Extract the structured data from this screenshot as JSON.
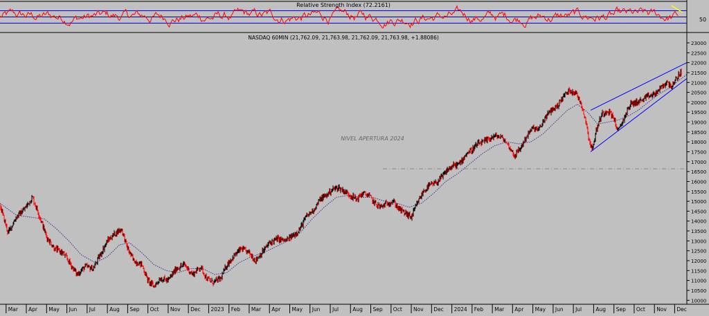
{
  "rsi_panel": {
    "title": "Relative Strength Index (72.2161)",
    "level_label": "50",
    "colors": {
      "line": "#ff0000",
      "bands": "#0000ff",
      "highlight": "#ffff00"
    }
  },
  "price_panel": {
    "title": "NASDAQ 60MIN  (21,762.09, 21,763.98, 21,762.09, 21,763.98, +1.88086)",
    "reference_label": "NIVEL APERTURA 2024",
    "colors": {
      "candles_up": "#000000",
      "candles_down": "#ff0000",
      "moving_average": "#4b2a8c",
      "trendlines": "#0000ff",
      "reference": "#888888"
    }
  },
  "chart_data": [
    {
      "type": "line",
      "title": "Relative Strength Index (72.2161)",
      "ylim": [
        0,
        100
      ],
      "levels": [
        30,
        50,
        70
      ],
      "y_ticks": [
        50
      ],
      "x_range": [
        "2022-03",
        "2024-12"
      ],
      "last_value": 72.2161
    },
    {
      "type": "line",
      "title": "NASDAQ 60MIN  (21,762.09, 21,763.98, 21,762.09, 21,763.98, +1.88086)",
      "ylim": [
        9800,
        23000
      ],
      "y_ticks": [
        10000,
        10500,
        11000,
        11500,
        12000,
        12500,
        13000,
        13500,
        14000,
        14500,
        15000,
        15500,
        16000,
        16500,
        17000,
        17500,
        18000,
        18500,
        19000,
        19500,
        20000,
        20500,
        21000,
        21500,
        22000,
        22500,
        23000
      ],
      "x_ticks": [
        {
          "label": "Mar",
          "x": 0
        },
        {
          "label": "Apr",
          "x": 1
        },
        {
          "label": "May",
          "x": 2
        },
        {
          "label": "Jun",
          "x": 3
        },
        {
          "label": "Jul",
          "x": 4
        },
        {
          "label": "Aug",
          "x": 5
        },
        {
          "label": "Sep",
          "x": 6
        },
        {
          "label": "Oct",
          "x": 7
        },
        {
          "label": "Nov",
          "x": 8
        },
        {
          "label": "Dec",
          "x": 9
        },
        {
          "label": "2023",
          "x": 10
        },
        {
          "label": "Feb",
          "x": 11
        },
        {
          "label": "Mar",
          "x": 12
        },
        {
          "label": "Apr",
          "x": 13
        },
        {
          "label": "May",
          "x": 14
        },
        {
          "label": "Jun",
          "x": 15
        },
        {
          "label": "Jul",
          "x": 16
        },
        {
          "label": "Aug",
          "x": 17
        },
        {
          "label": "Sep",
          "x": 18
        },
        {
          "label": "Oct",
          "x": 19
        },
        {
          "label": "Nov",
          "x": 20
        },
        {
          "label": "Dec",
          "x": 21
        },
        {
          "label": "2024",
          "x": 22
        },
        {
          "label": "Feb",
          "x": 23
        },
        {
          "label": "Mar",
          "x": 24
        },
        {
          "label": "Apr",
          "x": 25
        },
        {
          "label": "May",
          "x": 26
        },
        {
          "label": "Jun",
          "x": 27
        },
        {
          "label": "Jul",
          "x": 28
        },
        {
          "label": "Aug",
          "x": 29
        },
        {
          "label": "Sep",
          "x": 30
        },
        {
          "label": "Oct",
          "x": 31
        },
        {
          "label": "Nov",
          "x": 32
        },
        {
          "label": "Dec",
          "x": 33
        }
      ],
      "x_range": [
        -0.3,
        33.6
      ],
      "price_path": [
        [
          -0.3,
          14800
        ],
        [
          0.1,
          13400
        ],
        [
          0.5,
          14200
        ],
        [
          0.9,
          14600
        ],
        [
          1.3,
          15200
        ],
        [
          1.6,
          14400
        ],
        [
          2.0,
          13200
        ],
        [
          2.4,
          12600
        ],
        [
          2.8,
          12400
        ],
        [
          3.2,
          11800
        ],
        [
          3.5,
          11300
        ],
        [
          3.9,
          11700
        ],
        [
          4.3,
          11600
        ],
        [
          4.6,
          12200
        ],
        [
          5.0,
          13000
        ],
        [
          5.4,
          13400
        ],
        [
          5.7,
          13600
        ],
        [
          6.0,
          12600
        ],
        [
          6.3,
          12000
        ],
        [
          6.7,
          11800
        ],
        [
          7.0,
          11000
        ],
        [
          7.3,
          10700
        ],
        [
          7.6,
          11100
        ],
        [
          8.0,
          11000
        ],
        [
          8.4,
          11600
        ],
        [
          8.8,
          11800
        ],
        [
          9.2,
          11300
        ],
        [
          9.6,
          11700
        ],
        [
          9.9,
          11100
        ],
        [
          10.2,
          10900
        ],
        [
          10.6,
          11100
        ],
        [
          10.9,
          11800
        ],
        [
          11.3,
          12300
        ],
        [
          11.6,
          12600
        ],
        [
          12.0,
          12400
        ],
        [
          12.3,
          12000
        ],
        [
          12.7,
          12500
        ],
        [
          13.0,
          12900
        ],
        [
          13.4,
          13100
        ],
        [
          13.8,
          13000
        ],
        [
          14.2,
          13300
        ],
        [
          14.5,
          13600
        ],
        [
          14.8,
          14200
        ],
        [
          15.2,
          14600
        ],
        [
          15.5,
          15100
        ],
        [
          15.8,
          15300
        ],
        [
          16.1,
          15600
        ],
        [
          16.4,
          15700
        ],
        [
          16.7,
          15500
        ],
        [
          17.0,
          15300
        ],
        [
          17.3,
          15100
        ],
        [
          17.6,
          15400
        ],
        [
          17.9,
          15300
        ],
        [
          18.2,
          14900
        ],
        [
          18.5,
          14700
        ],
        [
          18.8,
          14900
        ],
        [
          19.1,
          15000
        ],
        [
          19.4,
          14600
        ],
        [
          19.7,
          14400
        ],
        [
          20.0,
          14200
        ],
        [
          20.3,
          14900
        ],
        [
          20.6,
          15500
        ],
        [
          20.9,
          15800
        ],
        [
          21.2,
          15900
        ],
        [
          21.5,
          16200
        ],
        [
          21.8,
          16600
        ],
        [
          22.1,
          16800
        ],
        [
          22.4,
          16900
        ],
        [
          22.7,
          17400
        ],
        [
          23.0,
          17600
        ],
        [
          23.3,
          17900
        ],
        [
          23.6,
          18000
        ],
        [
          23.9,
          18200
        ],
        [
          24.2,
          18300
        ],
        [
          24.5,
          18200
        ],
        [
          24.8,
          17800
        ],
        [
          25.1,
          17300
        ],
        [
          25.4,
          17700
        ],
        [
          25.7,
          18300
        ],
        [
          26.0,
          18700
        ],
        [
          26.3,
          18600
        ],
        [
          26.6,
          19200
        ],
        [
          26.9,
          19600
        ],
        [
          27.2,
          19800
        ],
        [
          27.5,
          20300
        ],
        [
          27.8,
          20600
        ],
        [
          28.1,
          20500
        ],
        [
          28.4,
          19900
        ],
        [
          28.6,
          19100
        ],
        [
          28.8,
          18000
        ],
        [
          28.95,
          17600
        ],
        [
          29.1,
          18500
        ],
        [
          29.4,
          19400
        ],
        [
          29.7,
          19600
        ],
        [
          30.0,
          19200
        ],
        [
          30.2,
          18500
        ],
        [
          30.5,
          19200
        ],
        [
          30.8,
          19900
        ],
        [
          31.1,
          20000
        ],
        [
          31.4,
          20100
        ],
        [
          31.7,
          20300
        ],
        [
          32.0,
          20400
        ],
        [
          32.3,
          20700
        ],
        [
          32.6,
          21000
        ],
        [
          32.9,
          20800
        ],
        [
          33.2,
          21400
        ],
        [
          33.6,
          21763.98
        ]
      ],
      "moving_average": [
        [
          -0.3,
          14900
        ],
        [
          0.5,
          14300
        ],
        [
          1.2,
          14200
        ],
        [
          1.9,
          14100
        ],
        [
          2.5,
          13600
        ],
        [
          3.1,
          13000
        ],
        [
          3.7,
          12300
        ],
        [
          4.4,
          11900
        ],
        [
          5.0,
          12200
        ],
        [
          5.6,
          12800
        ],
        [
          6.1,
          12900
        ],
        [
          6.7,
          12400
        ],
        [
          7.3,
          11800
        ],
        [
          7.9,
          11500
        ],
        [
          8.5,
          11400
        ],
        [
          9.1,
          11600
        ],
        [
          9.7,
          11600
        ],
        [
          10.3,
          11300
        ],
        [
          10.9,
          11400
        ],
        [
          11.5,
          11900
        ],
        [
          12.1,
          12200
        ],
        [
          12.7,
          12400
        ],
        [
          13.3,
          12700
        ],
        [
          13.9,
          13000
        ],
        [
          14.5,
          13400
        ],
        [
          15.1,
          14100
        ],
        [
          15.7,
          14700
        ],
        [
          16.3,
          15200
        ],
        [
          16.9,
          15300
        ],
        [
          17.5,
          15200
        ],
        [
          18.1,
          15200
        ],
        [
          18.7,
          15000
        ],
        [
          19.3,
          14900
        ],
        [
          19.9,
          14700
        ],
        [
          20.5,
          14900
        ],
        [
          21.1,
          15400
        ],
        [
          21.7,
          16000
        ],
        [
          22.3,
          16400
        ],
        [
          22.9,
          16900
        ],
        [
          23.5,
          17400
        ],
        [
          24.1,
          17800
        ],
        [
          24.7,
          18000
        ],
        [
          25.3,
          17900
        ],
        [
          25.9,
          18000
        ],
        [
          26.5,
          18400
        ],
        [
          27.1,
          19000
        ],
        [
          27.7,
          19600
        ],
        [
          28.2,
          19900
        ],
        [
          28.7,
          19500
        ],
        [
          29.2,
          18900
        ],
        [
          29.7,
          19000
        ],
        [
          30.2,
          19100
        ],
        [
          30.7,
          19300
        ],
        [
          31.2,
          19600
        ],
        [
          31.7,
          20000
        ],
        [
          32.2,
          20400
        ],
        [
          32.7,
          20700
        ],
        [
          33.2,
          21100
        ],
        [
          33.6,
          21400
        ]
      ],
      "trendlines": [
        {
          "from": [
            28.85,
            19600
          ],
          "to": [
            33.6,
            22000
          ]
        },
        {
          "from": [
            28.85,
            17500
          ],
          "to": [
            33.6,
            21200
          ]
        }
      ],
      "reference_line": {
        "label": "NIVEL APERTURA 2024",
        "y": 16640,
        "from_x": 18.6,
        "to_x": 33.6
      }
    }
  ]
}
